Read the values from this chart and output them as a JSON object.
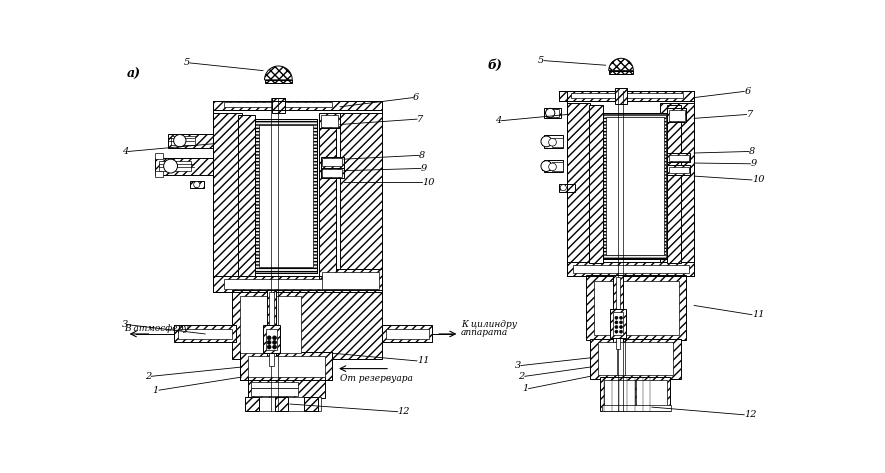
{
  "fig_width": 8.85,
  "fig_height": 4.73,
  "dpi": 100,
  "bg_color": "#ffffff",
  "label_a": "а)",
  "label_b": "б)",
  "text_atm": "В атмосферу",
  "text_cyl_line1": "К цилиндру",
  "text_cyl_line2": "аппарата",
  "text_res": "От резервуара"
}
